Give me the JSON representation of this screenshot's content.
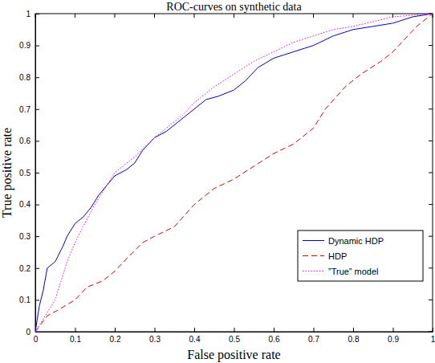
{
  "chart_data": {
    "type": "line",
    "title": "ROC-curves on synthetic data",
    "x_label": "False positive rate",
    "y_label": "True positive rate",
    "xlim": [
      0,
      1
    ],
    "ylim": [
      0,
      1
    ],
    "xticks": [
      0,
      0.1,
      0.2,
      0.3,
      0.4,
      0.5,
      0.6,
      0.7,
      0.8,
      0.9,
      1
    ],
    "yticks": [
      0,
      0.1,
      0.2,
      0.3,
      0.4,
      0.5,
      0.6,
      0.7,
      0.8,
      0.9,
      1
    ],
    "grid": false,
    "legend": "lower right",
    "series": [
      {
        "name": "Dynamic HDP",
        "color": "#0000cc",
        "line_style": "solid",
        "x": [
          0,
          0.01,
          0.02,
          0.03,
          0.05,
          0.07,
          0.08,
          0.1,
          0.12,
          0.14,
          0.16,
          0.18,
          0.2,
          0.23,
          0.25,
          0.27,
          0.3,
          0.33,
          0.36,
          0.4,
          0.43,
          0.46,
          0.5,
          0.53,
          0.56,
          0.6,
          0.65,
          0.7,
          0.75,
          0.8,
          0.85,
          0.9,
          0.95,
          1
        ],
        "values": [
          0,
          0.08,
          0.13,
          0.2,
          0.22,
          0.27,
          0.3,
          0.34,
          0.36,
          0.39,
          0.43,
          0.46,
          0.49,
          0.51,
          0.53,
          0.57,
          0.61,
          0.63,
          0.66,
          0.7,
          0.73,
          0.74,
          0.76,
          0.79,
          0.83,
          0.86,
          0.88,
          0.9,
          0.93,
          0.95,
          0.96,
          0.97,
          0.99,
          1
        ]
      },
      {
        "name": "HDP",
        "color": "#dd0000",
        "line_style": "dashed",
        "x": [
          0,
          0.03,
          0.06,
          0.1,
          0.13,
          0.17,
          0.2,
          0.23,
          0.27,
          0.3,
          0.35,
          0.4,
          0.45,
          0.5,
          0.55,
          0.6,
          0.65,
          0.7,
          0.73,
          0.78,
          0.82,
          0.87,
          0.9,
          0.93,
          0.96,
          0.98,
          1
        ],
        "values": [
          0,
          0.05,
          0.07,
          0.1,
          0.14,
          0.16,
          0.19,
          0.23,
          0.28,
          0.3,
          0.33,
          0.4,
          0.45,
          0.48,
          0.52,
          0.56,
          0.59,
          0.64,
          0.7,
          0.77,
          0.81,
          0.85,
          0.88,
          0.92,
          0.96,
          0.98,
          1
        ]
      },
      {
        "name": "”True” model",
        "color": "#ee00ee",
        "line_style": "dotted",
        "x": [
          0,
          0.02,
          0.05,
          0.08,
          0.1,
          0.12,
          0.15,
          0.18,
          0.2,
          0.25,
          0.3,
          0.33,
          0.37,
          0.4,
          0.45,
          0.5,
          0.55,
          0.6,
          0.65,
          0.7,
          0.75,
          0.8,
          0.9,
          1
        ],
        "values": [
          0,
          0.04,
          0.1,
          0.22,
          0.28,
          0.33,
          0.4,
          0.46,
          0.5,
          0.55,
          0.61,
          0.64,
          0.68,
          0.72,
          0.77,
          0.81,
          0.85,
          0.88,
          0.91,
          0.93,
          0.95,
          0.96,
          0.99,
          1
        ]
      }
    ]
  }
}
